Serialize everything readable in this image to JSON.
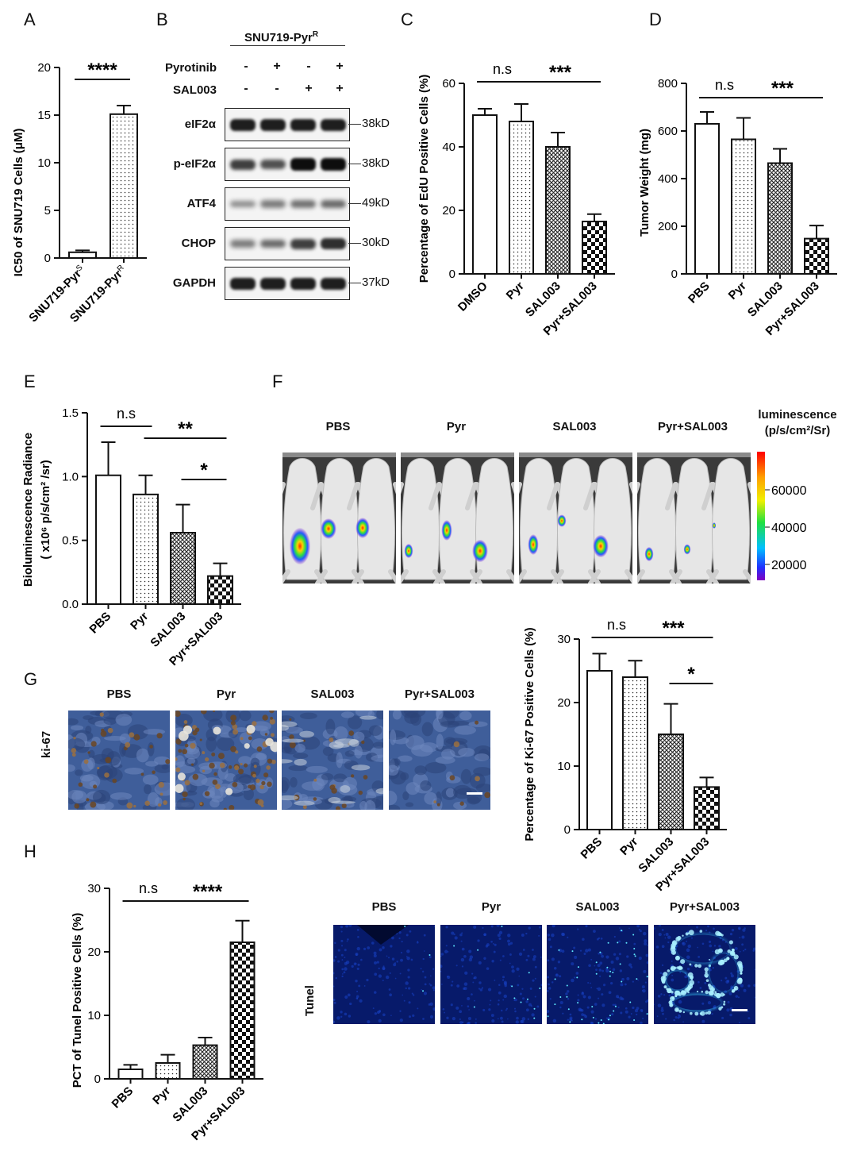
{
  "panels": {
    "A": "A",
    "B": "B",
    "C": "C",
    "D": "D",
    "E": "E",
    "F": "F",
    "G": "G",
    "H": "H"
  },
  "colors": {
    "ink": "#111111",
    "western_bg": "#f0f0f0",
    "ivis_bg": "#3a3a3a",
    "ihc_blue": "#3f5e9a",
    "tunel_bg": "#071a6a",
    "tunel_signal": "#3ad0ff"
  },
  "hatch": {
    "open": "none",
    "dotted": "dots",
    "crosshatch": "crosshatch",
    "checker": "checkerboard"
  },
  "chart_data": [
    {
      "panel": "A",
      "type": "bar",
      "categories": [
        "SNU719-PyrS",
        "SNU719-PyrR"
      ],
      "category_main": [
        "SNU719-Pyr",
        "SNU719-Pyr"
      ],
      "category_sup": [
        "S",
        "R"
      ],
      "values": [
        0.6,
        15.1
      ],
      "errors": [
        0.2,
        0.9
      ],
      "ylabel": "IC50 of SNU719 Cells (μM)",
      "ylim": [
        0,
        20
      ],
      "yticks": [
        0,
        5,
        10,
        15,
        20
      ],
      "sig": [
        {
          "from": 0,
          "to": 1,
          "label": "****"
        }
      ]
    },
    {
      "panel": "C",
      "type": "bar",
      "categories": [
        "DMSO",
        "Pyr",
        "SAL003",
        "Pyr+SAL003"
      ],
      "values": [
        50,
        48,
        40,
        16.5
      ],
      "errors": [
        2,
        5.5,
        4.5,
        2.3
      ],
      "ylabel": "Percentage of EdU Positive Cells (%)",
      "ylim": [
        0,
        60
      ],
      "yticks": [
        0,
        20,
        40,
        60
      ],
      "sig": [
        {
          "from": 0,
          "to": 1,
          "label": "n.s"
        },
        {
          "from": 1,
          "to": 3,
          "label": "***"
        }
      ]
    },
    {
      "panel": "D",
      "type": "bar",
      "categories": [
        "PBS",
        "Pyr",
        "SAL003",
        "Pyr+SAL003"
      ],
      "values": [
        630,
        565,
        465,
        148
      ],
      "errors": [
        50,
        90,
        60,
        55
      ],
      "ylabel": "Tumor Weight (mg)",
      "ylim": [
        0,
        800
      ],
      "yticks": [
        0,
        200,
        400,
        600,
        800
      ],
      "sig": [
        {
          "from": 0,
          "to": 1,
          "label": "n.s"
        },
        {
          "from": 1,
          "to": 3,
          "label": "***"
        }
      ]
    },
    {
      "panel": "E",
      "type": "bar",
      "categories": [
        "PBS",
        "Pyr",
        "SAL003",
        "Pyr+SAL003"
      ],
      "values": [
        1.01,
        0.86,
        0.56,
        0.22
      ],
      "errors": [
        0.26,
        0.15,
        0.22,
        0.1
      ],
      "ylabel": "Bioluminescence Radiance",
      "ylabel2": "( x10⁶ p/s/cm² /sr)",
      "ylim": [
        0,
        1.5
      ],
      "yticks": [
        "0.0",
        "0.5",
        "1.0",
        "1.5"
      ],
      "sig": [
        {
          "from": 0,
          "to": 1,
          "label": "n.s"
        },
        {
          "from": 1,
          "to": 3,
          "label": "**"
        },
        {
          "from": 2,
          "to": 3,
          "label": "*"
        }
      ]
    },
    {
      "panel": "G",
      "type": "bar",
      "categories": [
        "PBS",
        "Pyr",
        "SAL003",
        "Pyr+SAL003"
      ],
      "values": [
        25,
        24,
        15,
        6.7
      ],
      "errors": [
        2.7,
        2.6,
        4.8,
        1.5
      ],
      "ylabel": "Percentage of  Ki-67 Positive Cells (%)",
      "ylim": [
        0,
        30
      ],
      "yticks": [
        0,
        10,
        20,
        30
      ],
      "sig": [
        {
          "from": 0,
          "to": 1,
          "label": "n.s"
        },
        {
          "from": 1,
          "to": 3,
          "label": "***"
        },
        {
          "from": 2,
          "to": 3,
          "label": "*"
        }
      ]
    },
    {
      "panel": "H",
      "type": "bar",
      "categories": [
        "PBS",
        "Pyr",
        "SAL003",
        "Pyr+SAL003"
      ],
      "values": [
        1.5,
        2.5,
        5.3,
        21.5
      ],
      "errors": [
        0.7,
        1.3,
        1.2,
        3.4
      ],
      "ylabel": "PCT of  Tunel Positive Cells (%)",
      "ylim": [
        0,
        30
      ],
      "yticks": [
        0,
        10,
        20,
        30
      ],
      "sig": [
        {
          "from": 0,
          "to": 1,
          "label": "n.s"
        },
        {
          "from": 1,
          "to": 3,
          "label": "****"
        }
      ]
    }
  ],
  "western": {
    "title": "SNU719-Pyr",
    "title_sup": "R",
    "treatments": [
      {
        "label": "Pyrotinib",
        "signs": [
          "-",
          "+",
          "-",
          "+"
        ]
      },
      {
        "label": "SAL003",
        "signs": [
          "-",
          "-",
          "+",
          "+"
        ]
      }
    ],
    "blots": [
      {
        "name": "eIF2α",
        "kd": "38kD",
        "intensity": [
          0.9,
          0.9,
          0.9,
          0.9
        ]
      },
      {
        "name": "p-eIF2α",
        "kd": "38kD",
        "intensity": [
          0.7,
          0.6,
          1.0,
          1.0
        ]
      },
      {
        "name": "ATF4",
        "kd": "49kD",
        "intensity": [
          0.25,
          0.35,
          0.4,
          0.45
        ]
      },
      {
        "name": "CHOP",
        "kd": "30kD",
        "intensity": [
          0.35,
          0.45,
          0.7,
          0.8
        ]
      },
      {
        "name": "GAPDH",
        "kd": "37kD",
        "intensity": [
          0.9,
          0.9,
          0.9,
          0.9
        ]
      }
    ]
  },
  "imaging": {
    "groups": [
      "PBS",
      "Pyr",
      "SAL003",
      "Pyr+SAL003"
    ],
    "scale_title": "luminescence",
    "scale_unit": "(p/s/cm²/Sr)",
    "scale_ticks": [
      "60000",
      "40000",
      "20000"
    ]
  },
  "ihc": {
    "groups": [
      "PBS",
      "Pyr",
      "SAL003",
      "Pyr+SAL003"
    ],
    "row_label": "ki-67"
  },
  "tunel": {
    "groups": [
      "PBS",
      "Pyr",
      "SAL003",
      "Pyr+SAL003"
    ],
    "row_label": "Tunel"
  }
}
